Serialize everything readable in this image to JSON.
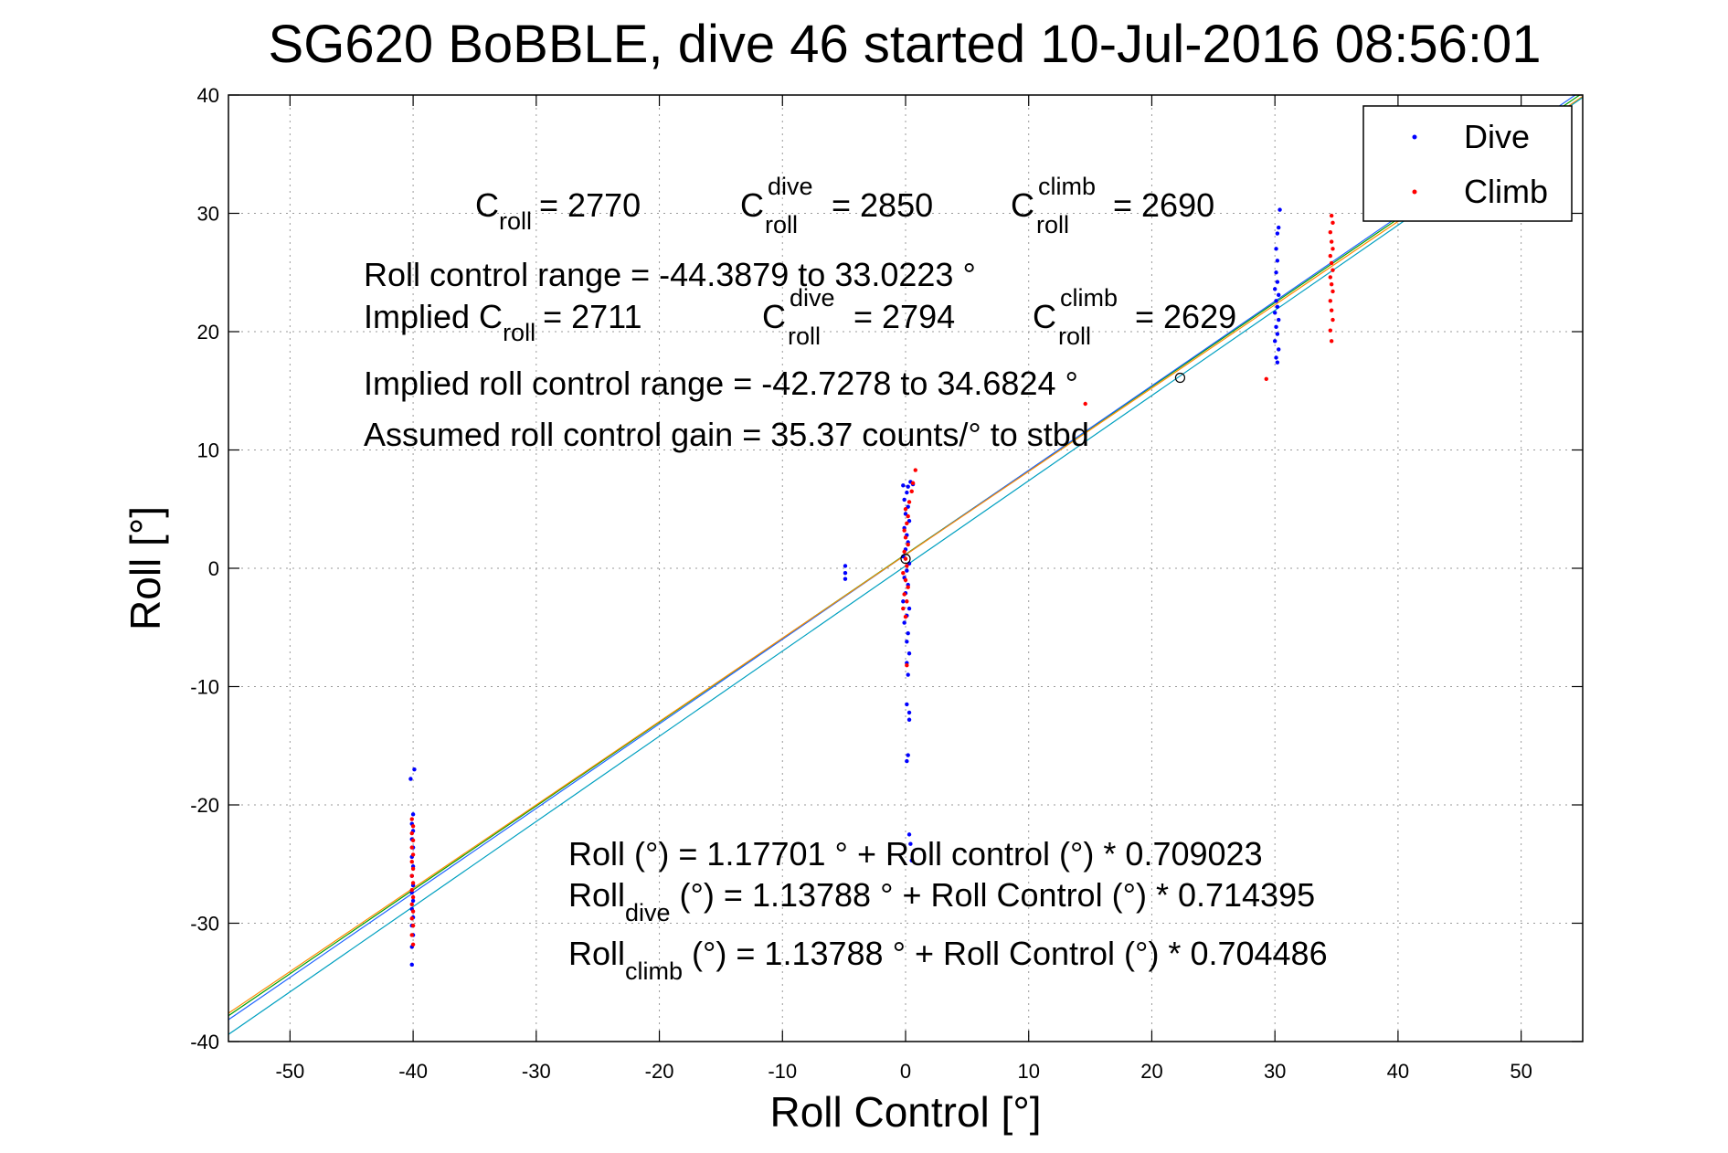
{
  "chart_data": {
    "type": "scatter",
    "title": "SG620 BoBBLE, dive 46 started 10-Jul-2016 08:56:01",
    "xlabel": "Roll Control [°]",
    "ylabel": "Roll [°]",
    "xlim": [
      -55,
      55
    ],
    "ylim": [
      -40,
      40
    ],
    "xticks": [
      -50,
      -40,
      -30,
      -20,
      -10,
      0,
      10,
      20,
      30,
      40,
      50
    ],
    "yticks": [
      -40,
      -30,
      -20,
      -10,
      0,
      10,
      20,
      30,
      40
    ],
    "xtick_labels": [
      "-50",
      "-40",
      "-30",
      "-20",
      "-10",
      "0",
      "10",
      "20",
      "30",
      "40",
      "50"
    ],
    "ytick_labels": [
      "-40",
      "-30",
      "-20",
      "-10",
      "0",
      "10",
      "20",
      "30",
      "40"
    ],
    "grid": true,
    "legend_position": "top-right",
    "colors": {
      "dive": "#0000ff",
      "climb": "#ff0000"
    },
    "legend": [
      {
        "label": "Dive",
        "color": "#0000ff",
        "marker": "point"
      },
      {
        "label": "Climb",
        "color": "#ff0000",
        "marker": "point"
      }
    ],
    "series": [
      {
        "name": "Dive",
        "color": "#0000ff",
        "points": [
          [
            -40.1,
            -33.5
          ],
          [
            -40.1,
            -32.0
          ],
          [
            -40.0,
            -31.0
          ],
          [
            -40.1,
            -30.2
          ],
          [
            -40.0,
            -29.5
          ],
          [
            -40.1,
            -28.8
          ],
          [
            -40.0,
            -28.1
          ],
          [
            -40.1,
            -27.4
          ],
          [
            -40.0,
            -26.8
          ],
          [
            -40.1,
            -26.0
          ],
          [
            -40.0,
            -25.2
          ],
          [
            -40.1,
            -24.4
          ],
          [
            -40.0,
            -23.6
          ],
          [
            -40.1,
            -22.9
          ],
          [
            -40.0,
            -22.2
          ],
          [
            -40.1,
            -21.6
          ],
          [
            -40.0,
            -20.8
          ],
          [
            -40.2,
            -17.8
          ],
          [
            -39.9,
            -17.0
          ],
          [
            -4.9,
            0.2
          ],
          [
            -4.9,
            -0.4
          ],
          [
            -4.9,
            -0.9
          ],
          [
            0.1,
            -16.3
          ],
          [
            0.2,
            -15.8
          ],
          [
            0.3,
            -12.2
          ],
          [
            0.3,
            -12.8
          ],
          [
            0.1,
            -11.5
          ],
          [
            0.2,
            -9.0
          ],
          [
            0.1,
            -8.0
          ],
          [
            0.3,
            -7.2
          ],
          [
            0.1,
            -6.2
          ],
          [
            0.2,
            -5.5
          ],
          [
            -0.1,
            -4.6
          ],
          [
            0.1,
            -4.0
          ],
          [
            0.3,
            -3.4
          ],
          [
            -0.2,
            -2.8
          ],
          [
            0.0,
            -2.1
          ],
          [
            0.2,
            -1.4
          ],
          [
            -0.1,
            -0.8
          ],
          [
            0.1,
            -0.2
          ],
          [
            0.3,
            0.4
          ],
          [
            -0.2,
            1.0
          ],
          [
            0.0,
            1.6
          ],
          [
            0.2,
            2.2
          ],
          [
            0.1,
            2.8
          ],
          [
            -0.1,
            3.4
          ],
          [
            0.3,
            4.0
          ],
          [
            0.0,
            4.6
          ],
          [
            0.2,
            5.2
          ],
          [
            -0.1,
            5.8
          ],
          [
            0.1,
            6.4
          ],
          [
            0.2,
            6.9
          ],
          [
            0.4,
            7.3
          ],
          [
            0.6,
            7.1
          ],
          [
            -0.2,
            7.0
          ],
          [
            0.3,
            -22.5
          ],
          [
            0.4,
            -23.3
          ],
          [
            0.5,
            -24.7
          ],
          [
            30.2,
            17.4
          ],
          [
            30.1,
            17.8
          ],
          [
            30.3,
            18.5
          ],
          [
            30.0,
            19.2
          ],
          [
            30.2,
            19.8
          ],
          [
            30.1,
            20.4
          ],
          [
            30.3,
            21.0
          ],
          [
            30.0,
            21.6
          ],
          [
            30.2,
            22.1
          ],
          [
            30.1,
            22.6
          ],
          [
            30.3,
            23.1
          ],
          [
            30.0,
            23.6
          ],
          [
            30.2,
            24.2
          ],
          [
            30.1,
            25.0
          ],
          [
            30.2,
            26.0
          ],
          [
            30.1,
            27.0
          ],
          [
            30.2,
            28.3
          ],
          [
            30.3,
            28.8
          ],
          [
            30.4,
            30.3
          ]
        ]
      },
      {
        "name": "Climb",
        "color": "#ff0000",
        "points": [
          [
            -40.0,
            -31.8
          ],
          [
            -40.1,
            -31.0
          ],
          [
            -40.0,
            -30.2
          ],
          [
            -40.1,
            -29.6
          ],
          [
            -40.0,
            -29.0
          ],
          [
            -40.1,
            -28.4
          ],
          [
            -40.0,
            -27.8
          ],
          [
            -40.1,
            -27.2
          ],
          [
            -40.0,
            -26.6
          ],
          [
            -40.1,
            -26.0
          ],
          [
            -40.0,
            -25.4
          ],
          [
            -40.1,
            -24.8
          ],
          [
            -40.0,
            -24.2
          ],
          [
            -40.1,
            -23.6
          ],
          [
            -40.0,
            -23.0
          ],
          [
            -40.1,
            -22.4
          ],
          [
            -40.0,
            -21.8
          ],
          [
            -40.1,
            -21.2
          ],
          [
            0.1,
            -8.2
          ],
          [
            0.0,
            -4.1
          ],
          [
            -0.2,
            -3.4
          ],
          [
            0.1,
            -2.8
          ],
          [
            -0.1,
            -2.2
          ],
          [
            0.2,
            -1.6
          ],
          [
            0.0,
            -1.0
          ],
          [
            -0.2,
            -0.4
          ],
          [
            0.1,
            0.2
          ],
          [
            0.0,
            0.8
          ],
          [
            -0.1,
            1.4
          ],
          [
            0.2,
            2.0
          ],
          [
            0.0,
            2.6
          ],
          [
            -0.1,
            3.2
          ],
          [
            0.1,
            3.8
          ],
          [
            0.2,
            4.4
          ],
          [
            0.0,
            5.0
          ],
          [
            0.3,
            5.6
          ],
          [
            0.5,
            6.5
          ],
          [
            0.6,
            7.2
          ],
          [
            0.8,
            8.3
          ],
          [
            29.3,
            16.0
          ],
          [
            34.6,
            19.2
          ],
          [
            34.5,
            20.1
          ],
          [
            34.7,
            21.0
          ],
          [
            34.6,
            21.8
          ],
          [
            34.5,
            22.6
          ],
          [
            34.7,
            23.4
          ],
          [
            34.6,
            24.0
          ],
          [
            34.5,
            24.6
          ],
          [
            34.7,
            25.2
          ],
          [
            34.6,
            25.8
          ],
          [
            34.5,
            26.4
          ],
          [
            34.7,
            27.0
          ],
          [
            34.6,
            27.6
          ],
          [
            34.5,
            28.4
          ],
          [
            34.7,
            29.2
          ],
          [
            34.6,
            29.8
          ],
          [
            14.6,
            13.9
          ]
        ]
      }
    ],
    "fit_lines": [
      {
        "name": "Fit all",
        "intercept": 1.17701,
        "slope": 0.709023,
        "color": "#00a000"
      },
      {
        "name": "Fit dive",
        "intercept": 1.13788,
        "slope": 0.714395,
        "color": "#1e64ff"
      },
      {
        "name": "Fit climb",
        "intercept": 1.13788,
        "slope": 0.704486,
        "color": "#ff8c00"
      },
      {
        "name": "Fit total",
        "intercept": 0.2,
        "slope": 0.72,
        "color": "#00a0c0"
      }
    ],
    "markers": [
      {
        "x": 22.3,
        "y": 16.1,
        "symbol": "circle"
      },
      {
        "x": 0.0,
        "y": 0.8,
        "symbol": "circle"
      }
    ],
    "annotations": {
      "c_roll": {
        "main": "C",
        "sub": "roll",
        "value": "= 2770"
      },
      "c_roll_dive": {
        "main": "C",
        "sup": "dive",
        "sub": "roll",
        "value": "= 2850"
      },
      "c_roll_climb": {
        "main": "C",
        "sup": "climb",
        "sub": "roll",
        "value": "= 2690"
      },
      "range": "Roll control range = -44.3879 to 33.0223 °",
      "implied_prefix": "Implied C",
      "implied_sub": "roll",
      "implied_value": "= 2711",
      "implied_dive": {
        "main": "C",
        "sup": "dive",
        "sub": "roll",
        "value": "= 2794"
      },
      "implied_climb": {
        "main": "C",
        "sup": "climb",
        "sub": "roll",
        "value": "= 2629"
      },
      "implied_range": "Implied roll control range = -42.7278 to 34.6824 °",
      "gain": "Assumed roll control gain = 35.37 counts/° to stbd",
      "eq_all": "Roll (°) = 1.17701 ° + Roll control (°) * 0.709023",
      "eq_dive_main": "Roll",
      "eq_dive_sub": "dive",
      "eq_dive_rest": " (°) = 1.13788 ° + Roll Control (°) * 0.714395",
      "eq_climb_main": "Roll",
      "eq_climb_sub": "climb",
      "eq_climb_rest": " (°) = 1.13788 ° + Roll Control (°) * 0.704486"
    }
  }
}
